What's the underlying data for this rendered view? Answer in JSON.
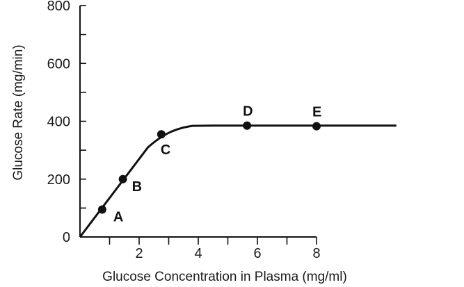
{
  "chart_data": {
    "type": "line",
    "title": "",
    "xlabel": "Glucose Concentration in Plasma (mg/ml)",
    "ylabel": "Glucose Rate (mg/min)",
    "xlim": [
      0,
      8
    ],
    "ylim": [
      0,
      800
    ],
    "x_ticks": [
      2,
      4,
      6,
      8
    ],
    "x_minor_ticks": [
      1,
      3,
      5,
      7
    ],
    "y_ticks": [
      0,
      200,
      400,
      600,
      800
    ],
    "y_minor_ticks": [
      100,
      300,
      500,
      700
    ],
    "grid": false,
    "series": [
      {
        "curve": [
          {
            "x": 0,
            "y": 0
          },
          {
            "x": 2.3,
            "y": 310
          },
          {
            "x": 2.8,
            "y": 355
          },
          {
            "x": 3.2,
            "y": 375
          },
          {
            "x": 3.8,
            "y": 384
          },
          {
            "x": 4.5,
            "y": 385
          },
          {
            "x": 10.7,
            "y": 385
          }
        ],
        "points": [
          {
            "label": "A",
            "x": 0.75,
            "y": 95
          },
          {
            "label": "B",
            "x": 1.45,
            "y": 200
          },
          {
            "label": "C",
            "x": 2.75,
            "y": 355
          },
          {
            "label": "D",
            "x": 5.65,
            "y": 385
          },
          {
            "label": "E",
            "x": 8.0,
            "y": 383
          }
        ]
      }
    ]
  },
  "colors": {
    "line": "#111111",
    "axis": "#111111",
    "background": "#ffffff"
  }
}
